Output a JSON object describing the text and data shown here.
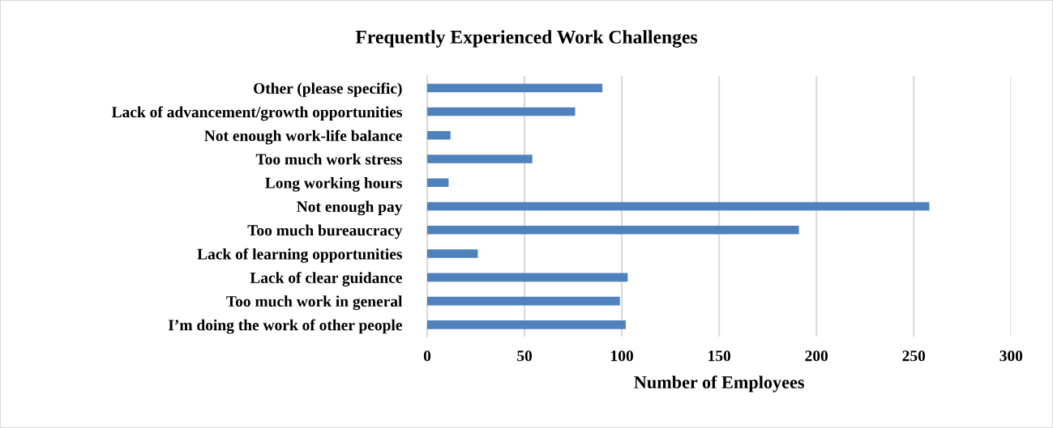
{
  "chart_data": {
    "type": "bar",
    "orientation": "horizontal",
    "title": "Frequently Experienced Work Challenges",
    "xlabel": "Number of Employees",
    "categories": [
      "Other (please specific)",
      "Lack of advancement/growth opportunities",
      "Not enough work-life balance",
      "Too much work stress",
      "Long working hours",
      "Not enough pay",
      "Too much bureaucracy",
      "Lack of learning opportunities",
      "Lack of clear guidance",
      "Too much work in general",
      "I’m doing the work of other people"
    ],
    "values": [
      90,
      76,
      12,
      54,
      11,
      258,
      191,
      26,
      103,
      99,
      102
    ],
    "color": "#4f81bd",
    "xlim": [
      0,
      300
    ],
    "xticks": [
      0,
      50,
      100,
      150,
      200,
      250,
      300
    ],
    "grid": "x",
    "legend": false
  }
}
